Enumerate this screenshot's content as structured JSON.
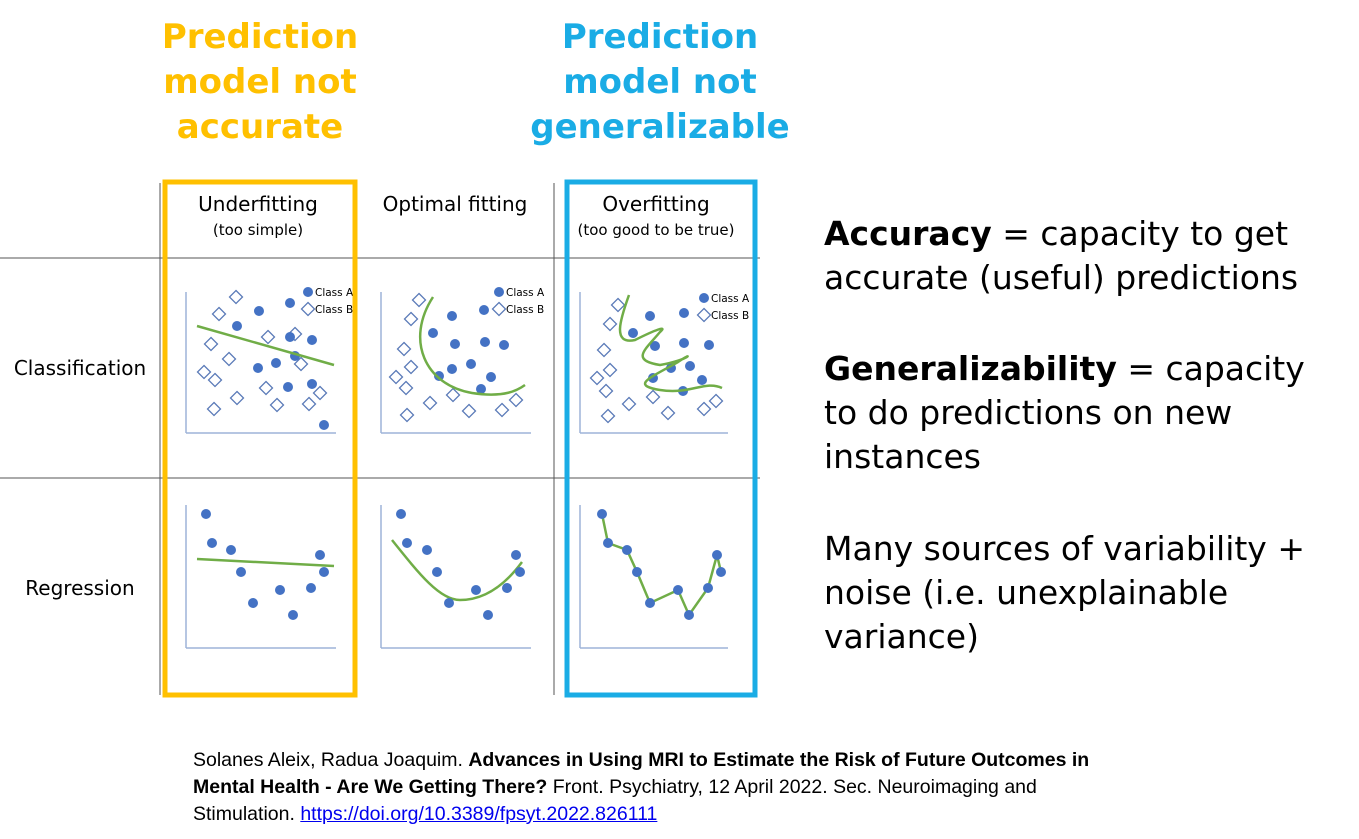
{
  "headers": {
    "left": [
      "Prediction",
      "model not",
      "accurate"
    ],
    "right": [
      "Prediction",
      "model not",
      "generalizable"
    ]
  },
  "columns": {
    "underfitting": {
      "title": "Underfitting",
      "sub": "(too simple)"
    },
    "optimal": {
      "title": "Optimal fitting"
    },
    "overfitting": {
      "title": "Overfitting",
      "sub": "(too good to be true)"
    }
  },
  "rows": {
    "classification": "Classification",
    "regression": "Regression"
  },
  "legend": {
    "class_a": "Class A",
    "class_b": "Class B"
  },
  "definitions": {
    "accuracy_term": "Accuracy",
    "accuracy_text": " = capacity to get accurate (useful) predictions",
    "generalizability_term": "Generalizability",
    "generalizability_text": " = capacity to do predictions on new instances",
    "variability_text": "Many sources of variability + noise (i.e. unexplainable variance)"
  },
  "citation": {
    "authors": "Solanes Aleix, Radua Joaquim. ",
    "title": "Advances in Using MRI to Estimate the Risk of Future Outcomes in Mental Health - Are We Getting There?",
    "journal": " Front. Psychiatry, 12 April 2022. Sec. Neuroimaging and Stimulation. ",
    "url": "https://doi.org/10.3389/fpsyt.2022.826111"
  },
  "colors": {
    "underfit_frame": "#FFC000",
    "overfit_frame": "#1AACE5",
    "class_a_dot": "#4472C4",
    "fit_line": "#70AD47",
    "link": "#0000EE"
  }
}
